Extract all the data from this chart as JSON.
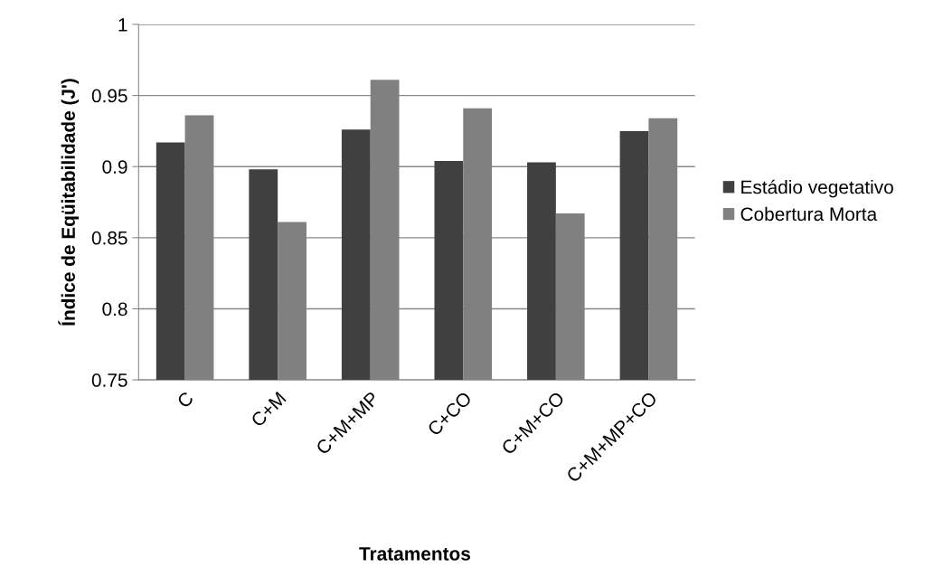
{
  "chart_data": {
    "type": "bar",
    "xlabel": "Tratamentos",
    "ylabel": "Índice de Eqüitabilidade (J')",
    "categories": [
      "C",
      "C+M",
      "C+M+MP",
      "C+CO",
      "C+M+CO",
      "C+M+MP+CO"
    ],
    "series": [
      {
        "name": "Estádio vegetativo",
        "color": "#404040",
        "values": [
          0.917,
          0.898,
          0.926,
          0.904,
          0.903,
          0.925
        ]
      },
      {
        "name": "Cobertura Morta",
        "color": "#808080",
        "values": [
          0.936,
          0.861,
          0.961,
          0.941,
          0.867,
          0.934
        ]
      }
    ],
    "ylim": [
      0.75,
      1
    ],
    "yticks": [
      0.75,
      0.8,
      0.85,
      0.9,
      0.95,
      1
    ],
    "grid": "y",
    "legend": "right"
  }
}
